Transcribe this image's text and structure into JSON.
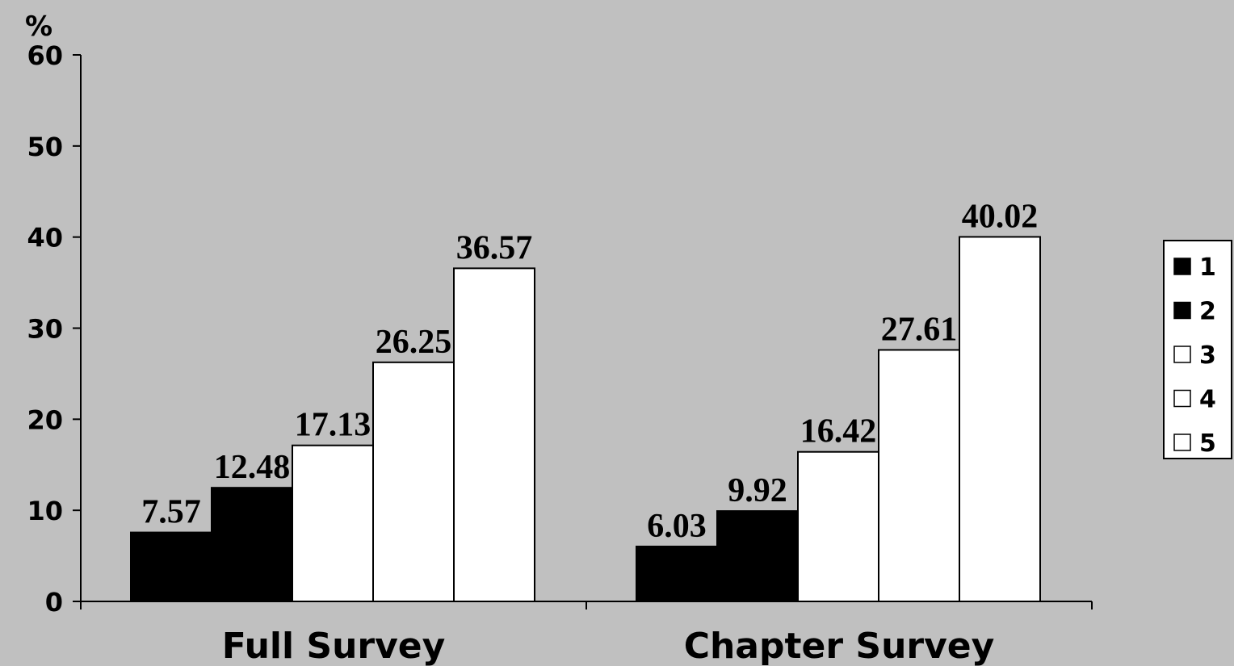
{
  "chart_data": {
    "type": "bar",
    "ylabel": "%",
    "ylim": [
      0,
      60
    ],
    "yticks": [
      0,
      10,
      20,
      30,
      40,
      50,
      60
    ],
    "categories": [
      "Full Survey",
      "Chapter Survey"
    ],
    "series": [
      {
        "name": "1",
        "values": [
          7.57,
          6.03
        ],
        "color": "#000000"
      },
      {
        "name": "2",
        "values": [
          12.48,
          9.92
        ],
        "color": "#000000"
      },
      {
        "name": "3",
        "values": [
          17.13,
          16.42
        ],
        "color": "#ffffff"
      },
      {
        "name": "4",
        "values": [
          26.25,
          27.61
        ],
        "color": "#ffffff"
      },
      {
        "name": "5",
        "values": [
          36.57,
          40.02
        ],
        "color": "#ffffff"
      }
    ],
    "data_labels": [
      [
        "7.57",
        "6.03"
      ],
      [
        "12.48",
        "9.92"
      ],
      [
        "17.13",
        "16.42"
      ],
      [
        "26.25",
        "27.61"
      ],
      [
        "36.57",
        "40.02"
      ]
    ],
    "grid": false,
    "legend_position": "right",
    "background": "#c0c0c0"
  }
}
